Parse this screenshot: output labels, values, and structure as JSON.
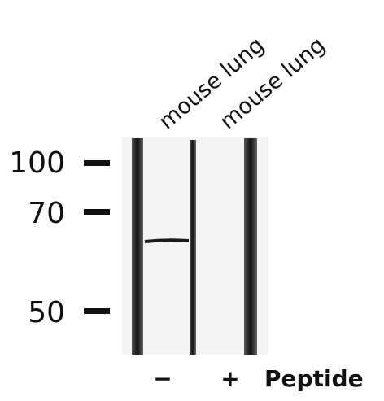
{
  "lanes": [
    {
      "label": "mouse lung",
      "peptide": "−"
    },
    {
      "label": "mouse lung",
      "peptide": "+"
    }
  ],
  "markers": [
    100,
    70,
    50
  ],
  "peptide_label": "Peptide"
}
